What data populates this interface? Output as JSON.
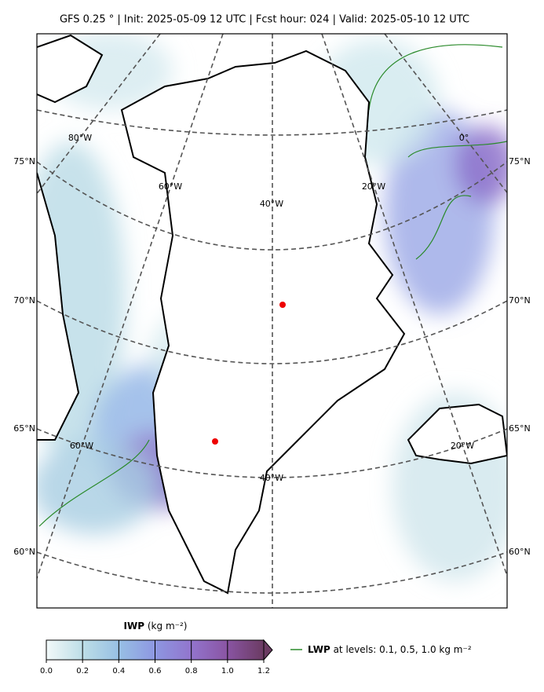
{
  "title": "GFS 0.25 °  |  Init: 2025-05-09 12 UTC  |  Fcst hour: 024  |  Valid: 2025-05-10 12 UTC",
  "map": {
    "lat_labels_left": [
      "75°N",
      "70°N",
      "65°N",
      "60°N"
    ],
    "lat_labels_right": [
      "75°N",
      "70°N",
      "65°N",
      "60°N"
    ],
    "lon_labels": [
      "80°W",
      "60°W",
      "40°W",
      "20°W",
      "0°",
      "60°W",
      "40°W",
      "20°W"
    ]
  },
  "colorbar": {
    "label": "IWP",
    "unit": "(kg m⁻²)",
    "lim": [
      0,
      1.2
    ],
    "ticks": [
      {
        "value": 0,
        "label": "0.0"
      },
      {
        "value": 0.2,
        "label": "0.2"
      },
      {
        "value": 0.4,
        "label": "0.4"
      },
      {
        "value": 0.6,
        "label": "0.6"
      },
      {
        "value": 0.8,
        "label": "0.8"
      },
      {
        "value": 1.0,
        "label": "1.0"
      },
      {
        "value": 1.2,
        "label": "1.2"
      }
    ]
  },
  "legend": {
    "name": "LWP",
    "text": "at levels: 0.1, 0.5, 1.0  kg m⁻²"
  }
}
